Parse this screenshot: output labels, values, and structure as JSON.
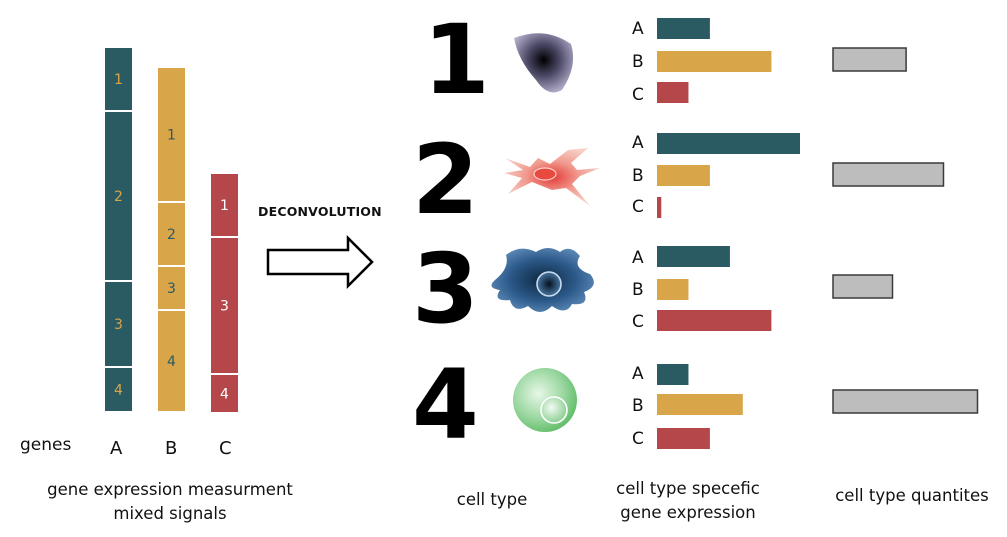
{
  "colors": {
    "gene_A": "#2b5b62",
    "gene_B": "#d8a549",
    "gene_C": "#b5474a",
    "quantity": "#bdbdbd",
    "segment_label_on_A": "#d8a549",
    "segment_label_on_B": "#2b5b62",
    "segment_label_on_C": "#ffffff"
  },
  "mixed": {
    "genes_label": "genes",
    "columns": [
      {
        "gene": "A",
        "segments": [
          "1",
          "2",
          "3",
          "4"
        ]
      },
      {
        "gene": "B",
        "segments": [
          "1",
          "2",
          "3",
          "4"
        ]
      },
      {
        "gene": "C",
        "segments": [
          "1",
          "3",
          "4"
        ]
      }
    ],
    "caption_line1": "gene expression measurment",
    "caption_line2": "mixed signals"
  },
  "arrow": {
    "label": "DECONVOLUTION"
  },
  "cell_types": [
    {
      "number": "1",
      "icon": "triangular-cell-icon",
      "expression": {
        "A": 0.37,
        "B": 0.8,
        "C": 0.22
      },
      "quantity": 0.43
    },
    {
      "number": "2",
      "icon": "star-shaped-cell-icon",
      "expression": {
        "A": 1.0,
        "B": 0.37,
        "C": 0.03
      },
      "quantity": 0.65
    },
    {
      "number": "3",
      "icon": "irregular-cell-icon",
      "expression": {
        "A": 0.51,
        "B": 0.22,
        "C": 0.8
      },
      "quantity": 0.35
    },
    {
      "number": "4",
      "icon": "round-cell-icon",
      "expression": {
        "A": 0.22,
        "B": 0.6,
        "C": 0.37
      },
      "quantity": 0.85
    }
  ],
  "captions": {
    "cell_type": "cell type",
    "specific_line1": "cell type specefic",
    "specific_line2": "gene expression",
    "quantities": "cell type quantites"
  }
}
